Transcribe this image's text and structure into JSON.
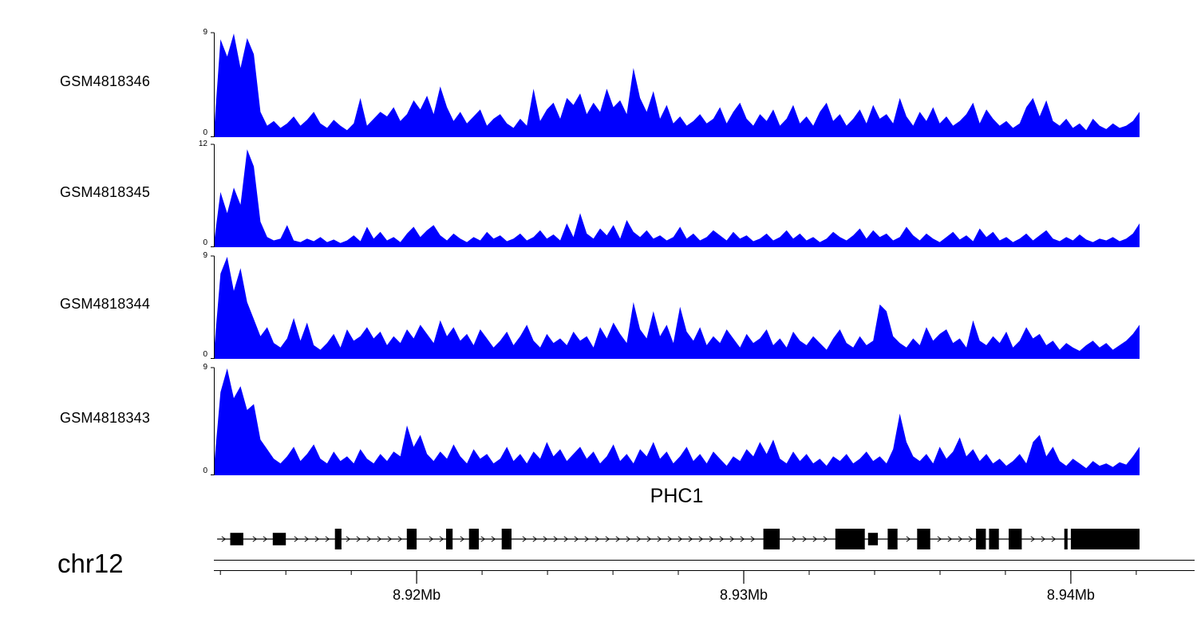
{
  "page": {
    "background": "#ffffff",
    "text_color": "#000000"
  },
  "chart_data": {
    "type": "area",
    "title": "",
    "description": "Genome browser coverage tracks over gene PHC1",
    "region": {
      "chromosome": "chr12",
      "start_mb": 8.9138,
      "end_mb": 8.9421,
      "unit": "Mb"
    },
    "x_axis": {
      "ticks": [
        {
          "value": 8.92,
          "label": "8.92Mb"
        },
        {
          "value": 8.93,
          "label": "8.93Mb"
        },
        {
          "value": 8.94,
          "label": "8.94Mb"
        }
      ],
      "minor_tick_interval_mb": 0.002
    },
    "track_color": "#0000FF",
    "tracks": [
      {
        "name": "GSM4818346",
        "ymin": 0,
        "ymax": 9,
        "values": [
          0.3,
          8.5,
          7.0,
          9.0,
          6.0,
          8.6,
          7.2,
          2.2,
          1.0,
          1.4,
          0.8,
          1.2,
          1.8,
          1.0,
          1.5,
          2.2,
          1.2,
          0.8,
          1.5,
          1.0,
          0.6,
          1.2,
          3.4,
          1.0,
          1.6,
          2.2,
          1.8,
          2.6,
          1.4,
          2.0,
          3.2,
          2.4,
          3.6,
          2.0,
          4.4,
          2.6,
          1.4,
          2.2,
          1.2,
          1.8,
          2.4,
          1.0,
          1.6,
          2.0,
          1.2,
          0.8,
          1.6,
          1.0,
          4.2,
          1.4,
          2.4,
          3.0,
          1.6,
          3.4,
          2.8,
          3.8,
          2.0,
          3.0,
          2.2,
          4.2,
          2.6,
          3.2,
          2.0,
          6.0,
          3.4,
          2.2,
          4.0,
          1.6,
          2.8,
          1.2,
          1.8,
          1.0,
          1.4,
          2.0,
          1.2,
          1.6,
          2.6,
          1.2,
          2.2,
          3.0,
          1.6,
          1.0,
          2.0,
          1.4,
          2.4,
          1.0,
          1.6,
          2.8,
          1.2,
          1.8,
          1.0,
          2.2,
          3.0,
          1.4,
          2.0,
          1.0,
          1.6,
          2.4,
          1.2,
          2.8,
          1.6,
          2.0,
          1.2,
          3.4,
          1.8,
          1.0,
          2.2,
          1.4,
          2.6,
          1.2,
          1.8,
          1.0,
          1.4,
          2.0,
          3.0,
          1.2,
          2.4,
          1.6,
          1.0,
          1.4,
          0.8,
          1.2,
          2.6,
          3.4,
          1.8,
          3.2,
          1.4,
          1.0,
          1.6,
          0.8,
          1.2,
          0.6,
          1.6,
          1.0,
          0.7,
          1.2,
          0.8,
          1.0,
          1.4,
          2.2
        ]
      },
      {
        "name": "GSM4818345",
        "ymin": 0,
        "ymax": 12,
        "values": [
          0.4,
          6.5,
          4.0,
          7.0,
          5.0,
          11.5,
          9.5,
          3.0,
          1.2,
          0.8,
          1.0,
          2.6,
          0.8,
          0.6,
          1.0,
          0.7,
          1.2,
          0.6,
          0.9,
          0.5,
          0.8,
          1.4,
          0.7,
          2.4,
          1.0,
          1.8,
          0.8,
          1.2,
          0.6,
          1.6,
          2.4,
          1.2,
          2.0,
          2.6,
          1.4,
          0.8,
          1.6,
          1.0,
          0.6,
          1.2,
          0.8,
          1.8,
          1.0,
          1.4,
          0.7,
          1.0,
          1.6,
          0.8,
          1.2,
          2.0,
          1.0,
          1.5,
          0.8,
          2.8,
          1.2,
          4.0,
          1.6,
          1.0,
          2.2,
          1.4,
          2.6,
          1.0,
          3.2,
          1.8,
          1.2,
          2.0,
          1.0,
          1.4,
          0.8,
          1.2,
          2.4,
          1.0,
          1.6,
          0.8,
          1.2,
          2.0,
          1.4,
          0.8,
          1.8,
          1.0,
          1.4,
          0.7,
          1.0,
          1.6,
          0.8,
          1.2,
          2.0,
          1.0,
          1.6,
          0.8,
          1.2,
          0.6,
          1.0,
          1.8,
          1.2,
          0.8,
          1.4,
          2.2,
          1.0,
          2.0,
          1.2,
          1.6,
          0.8,
          1.2,
          2.4,
          1.4,
          0.8,
          1.6,
          1.0,
          0.6,
          1.2,
          1.8,
          0.9,
          1.4,
          0.7,
          2.2,
          1.2,
          1.8,
          0.8,
          1.2,
          0.6,
          1.0,
          1.6,
          0.8,
          1.4,
          2.0,
          1.0,
          0.7,
          1.2,
          0.8,
          1.5,
          0.9,
          0.6,
          1.0,
          0.8,
          1.2,
          0.7,
          1.0,
          1.6,
          2.8
        ]
      },
      {
        "name": "GSM4818344",
        "ymin": 0,
        "ymax": 9,
        "values": [
          0.5,
          7.5,
          9.0,
          6.0,
          8.0,
          5.0,
          3.5,
          2.0,
          2.8,
          1.4,
          1.0,
          1.8,
          3.6,
          1.6,
          3.2,
          1.2,
          0.8,
          1.4,
          2.2,
          1.0,
          2.6,
          1.6,
          2.0,
          2.8,
          1.8,
          2.4,
          1.2,
          2.0,
          1.4,
          2.6,
          1.8,
          3.0,
          2.2,
          1.4,
          3.4,
          2.0,
          2.8,
          1.6,
          2.2,
          1.2,
          2.6,
          1.8,
          1.0,
          1.6,
          2.4,
          1.2,
          2.0,
          3.0,
          1.6,
          1.0,
          2.2,
          1.4,
          1.8,
          1.2,
          2.4,
          1.6,
          2.0,
          1.0,
          2.8,
          1.8,
          3.2,
          2.2,
          1.4,
          5.0,
          2.6,
          1.8,
          4.2,
          2.0,
          3.0,
          1.4,
          4.6,
          2.4,
          1.6,
          2.8,
          1.2,
          2.0,
          1.4,
          2.6,
          1.8,
          1.0,
          2.2,
          1.4,
          1.8,
          2.6,
          1.2,
          1.8,
          1.0,
          2.4,
          1.6,
          1.2,
          2.0,
          1.4,
          0.8,
          1.8,
          2.6,
          1.4,
          1.0,
          2.0,
          1.2,
          1.6,
          4.8,
          4.2,
          2.0,
          1.4,
          1.0,
          1.8,
          1.2,
          2.8,
          1.6,
          2.2,
          2.6,
          1.4,
          1.8,
          1.0,
          3.4,
          1.6,
          1.2,
          2.0,
          1.4,
          2.4,
          1.0,
          1.6,
          2.8,
          1.8,
          2.2,
          1.2,
          1.6,
          0.8,
          1.4,
          1.0,
          0.7,
          1.2,
          1.6,
          1.0,
          1.4,
          0.8,
          1.2,
          1.6,
          2.2,
          3.0
        ]
      },
      {
        "name": "GSM4818343",
        "ymin": 0,
        "ymax": 9,
        "values": [
          0.6,
          7.0,
          9.0,
          6.5,
          7.5,
          5.5,
          6.0,
          3.0,
          2.2,
          1.4,
          1.0,
          1.6,
          2.4,
          1.2,
          1.8,
          2.6,
          1.4,
          1.0,
          2.0,
          1.2,
          1.6,
          1.0,
          2.2,
          1.4,
          1.0,
          1.8,
          1.2,
          2.0,
          1.6,
          4.2,
          2.4,
          3.4,
          1.8,
          1.2,
          2.0,
          1.4,
          2.6,
          1.6,
          1.0,
          2.2,
          1.4,
          1.8,
          1.0,
          1.4,
          2.4,
          1.2,
          1.8,
          1.0,
          2.0,
          1.4,
          2.8,
          1.6,
          2.2,
          1.2,
          1.8,
          2.4,
          1.4,
          2.0,
          1.0,
          1.6,
          2.6,
          1.2,
          1.8,
          1.0,
          2.2,
          1.6,
          2.8,
          1.4,
          2.0,
          1.0,
          1.6,
          2.4,
          1.2,
          1.8,
          1.0,
          2.0,
          1.4,
          0.8,
          1.6,
          1.2,
          2.2,
          1.6,
          2.8,
          1.8,
          3.0,
          1.4,
          1.0,
          2.0,
          1.2,
          1.8,
          1.0,
          1.4,
          0.8,
          1.6,
          1.2,
          1.8,
          1.0,
          1.4,
          2.0,
          1.2,
          1.6,
          1.0,
          2.2,
          5.2,
          2.8,
          1.6,
          1.2,
          1.8,
          1.0,
          2.4,
          1.4,
          2.0,
          3.2,
          1.6,
          2.2,
          1.2,
          1.8,
          1.0,
          1.4,
          0.8,
          1.2,
          1.8,
          1.0,
          2.8,
          3.4,
          1.6,
          2.4,
          1.2,
          0.8,
          1.4,
          1.0,
          0.6,
          1.2,
          0.8,
          1.0,
          0.7,
          1.1,
          0.9,
          1.6,
          2.4
        ]
      }
    ],
    "gene": {
      "name": "PHC1",
      "strand": "+",
      "start_mb": 8.9139,
      "end_mb": 8.9421,
      "exons": [
        {
          "start_mb": 8.9143,
          "end_mb": 8.9147,
          "h": 0.6
        },
        {
          "start_mb": 8.9156,
          "end_mb": 8.916,
          "h": 0.6
        },
        {
          "start_mb": 8.9175,
          "end_mb": 8.9177,
          "h": 1
        },
        {
          "start_mb": 8.9197,
          "end_mb": 8.92,
          "h": 1
        },
        {
          "start_mb": 8.9209,
          "end_mb": 8.9211,
          "h": 1
        },
        {
          "start_mb": 8.9216,
          "end_mb": 8.9219,
          "h": 1
        },
        {
          "start_mb": 8.9226,
          "end_mb": 8.9229,
          "h": 1
        },
        {
          "start_mb": 8.9306,
          "end_mb": 8.9311,
          "h": 1
        },
        {
          "start_mb": 8.9328,
          "end_mb": 8.9337,
          "h": 1
        },
        {
          "start_mb": 8.9338,
          "end_mb": 8.9341,
          "h": 0.6
        },
        {
          "start_mb": 8.9344,
          "end_mb": 8.9347,
          "h": 1
        },
        {
          "start_mb": 8.9353,
          "end_mb": 8.9357,
          "h": 1
        },
        {
          "start_mb": 8.9371,
          "end_mb": 8.9374,
          "h": 1
        },
        {
          "start_mb": 8.9375,
          "end_mb": 8.9378,
          "h": 1
        },
        {
          "start_mb": 8.9381,
          "end_mb": 8.9385,
          "h": 1
        },
        {
          "start_mb": 8.9398,
          "end_mb": 8.9399,
          "h": 1
        },
        {
          "start_mb": 8.94,
          "end_mb": 8.9421,
          "h": 1
        }
      ]
    }
  }
}
